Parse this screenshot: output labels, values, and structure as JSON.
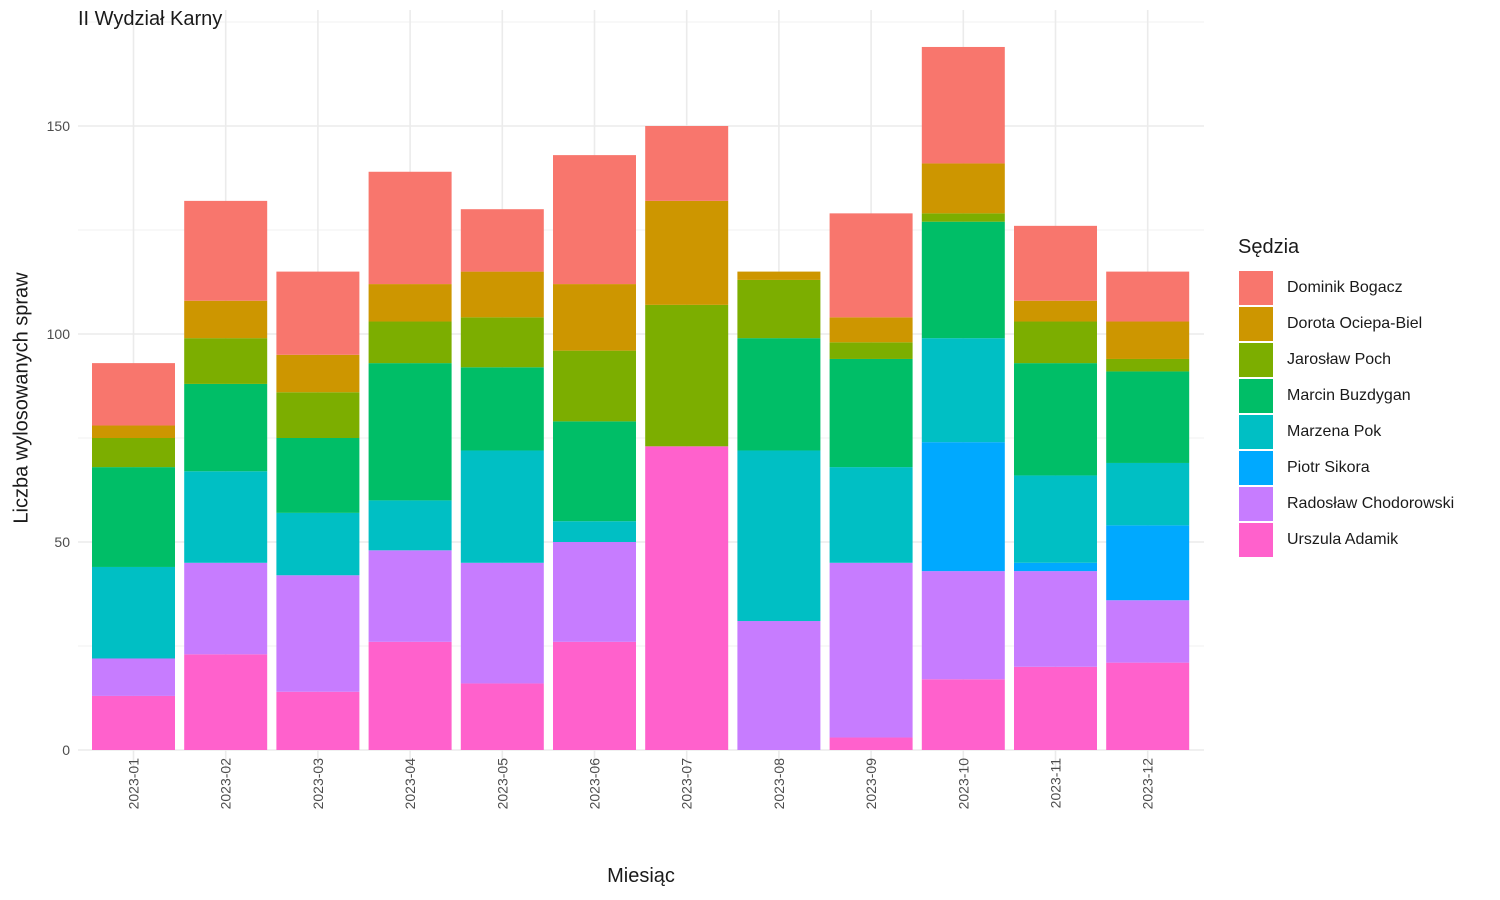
{
  "chart_data": {
    "type": "bar",
    "stacked": true,
    "title": "II Wydział Karny",
    "xlabel": "Miesiąc",
    "ylabel": "Liczba wylosowanych spraw",
    "ylim": [
      0,
      175
    ],
    "yticks": [
      0,
      50,
      100,
      150
    ],
    "grid": true,
    "legend_position": "right",
    "legend_title": "Sędzia",
    "categories": [
      "2023-01",
      "2023-02",
      "2023-03",
      "2023-04",
      "2023-05",
      "2023-06",
      "2023-07",
      "2023-08",
      "2023-09",
      "2023-10",
      "2023-11",
      "2023-12"
    ],
    "series": [
      {
        "name": "Urszula Adamik",
        "color": "#FF61CC",
        "values": [
          13,
          23,
          14,
          26,
          16,
          26,
          73,
          0,
          3,
          17,
          20,
          21
        ]
      },
      {
        "name": "Radosław Chodorowski",
        "color": "#C77CFF",
        "values": [
          9,
          22,
          28,
          22,
          29,
          24,
          0,
          31,
          42,
          26,
          23,
          15
        ]
      },
      {
        "name": "Piotr Sikora",
        "color": "#00A9FF",
        "values": [
          0,
          0,
          0,
          0,
          0,
          0,
          0,
          0,
          0,
          31,
          2,
          18
        ]
      },
      {
        "name": "Marzena Pok",
        "color": "#00BFC4",
        "values": [
          22,
          22,
          15,
          12,
          27,
          5,
          0,
          41,
          23,
          25,
          21,
          15
        ]
      },
      {
        "name": "Marcin Buzdygan",
        "color": "#00BE67",
        "values": [
          24,
          21,
          18,
          33,
          20,
          24,
          0,
          27,
          26,
          28,
          27,
          22
        ]
      },
      {
        "name": "Jarosław Poch",
        "color": "#7CAE00",
        "values": [
          7,
          11,
          11,
          10,
          12,
          17,
          34,
          14,
          4,
          2,
          10,
          3
        ]
      },
      {
        "name": "Dorota Ociepa-Biel",
        "color": "#CD9600",
        "values": [
          3,
          9,
          9,
          9,
          11,
          16,
          25,
          2,
          6,
          12,
          5,
          9
        ]
      },
      {
        "name": "Dominik Bogacz",
        "color": "#F8766D",
        "values": [
          15,
          24,
          20,
          27,
          15,
          31,
          18,
          0,
          25,
          28,
          18,
          12
        ]
      }
    ],
    "legend_order": [
      "Dominik Bogacz",
      "Dorota Ociepa-Biel",
      "Jarosław Poch",
      "Marcin Buzdygan",
      "Marzena Pok",
      "Piotr Sikora",
      "Radosław Chodorowski",
      "Urszula Adamik"
    ]
  }
}
